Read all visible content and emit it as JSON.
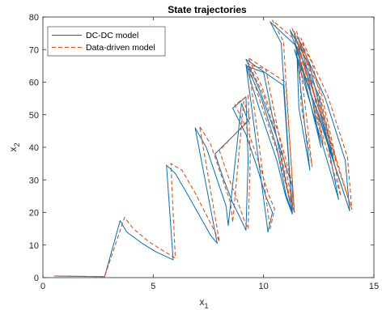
{
  "chart_data": {
    "type": "line",
    "title": "State trajectories",
    "xlabel": "x",
    "xlabel_sub": "1",
    "ylabel": "x",
    "ylabel_sub": "2",
    "xlim": [
      0,
      15
    ],
    "ylim": [
      0,
      80
    ],
    "xticks": [
      0,
      5,
      10,
      15
    ],
    "yticks": [
      0,
      10,
      20,
      30,
      40,
      50,
      60,
      70,
      80
    ],
    "grid": false,
    "legend_position": "top-left",
    "series": [
      {
        "name": "DC-DC model",
        "color": "#0072BD",
        "dash": "solid",
        "x": [
          0.5,
          2.8,
          3.5,
          3.8,
          4.5,
          5.1,
          5.9,
          5.6,
          6.0,
          6.6,
          7.6,
          7.9,
          6.9,
          7.4,
          7.9,
          8.3,
          8.4,
          9.0,
          9.3,
          7.8,
          8.2,
          8.6,
          9.0,
          9.2,
          9.3,
          9.2,
          8.6,
          9.2,
          9.7,
          10.1,
          10.4,
          10.2,
          9.2,
          9.9,
          10.6,
          11.0,
          11.3,
          10.9,
          9.2,
          9.8,
          10.6,
          11.3,
          11.3,
          10.0,
          9.2,
          9.8,
          10.6,
          11.0,
          11.3,
          10.8,
          10.3,
          11.5,
          11.6,
          12.1,
          11.4,
          12.0,
          12.6,
          11.5,
          12.5,
          13.2,
          11.6,
          12.8,
          13.7,
          13.9,
          11.2,
          12.1,
          12.8,
          13.4,
          11.4,
          12.5,
          13.3,
          13.9
        ],
        "y": [
          0.5,
          0.3,
          17.5,
          14.0,
          10.5,
          8.0,
          5.5,
          34.5,
          32.0,
          25.0,
          13.0,
          10.5,
          46.0,
          40.0,
          30.0,
          22.0,
          16.0,
          53.5,
          48.0,
          38.0,
          30.0,
          23.0,
          17.5,
          14.5,
          36.0,
          55.5,
          52.0,
          44.0,
          34.0,
          25.0,
          20.0,
          14.0,
          65.5,
          55.0,
          40.0,
          26.0,
          19.5,
          59.0,
          67.0,
          58.0,
          43.0,
          28.0,
          19.5,
          63.0,
          65.0,
          52.0,
          36.0,
          25.0,
          19.5,
          72.0,
          78.5,
          71.0,
          52.0,
          33.0,
          75.0,
          62.0,
          40.0,
          71.0,
          56.0,
          35.0,
          73.0,
          55.0,
          36.0,
          20.5,
          76.0,
          65.0,
          45.0,
          24.0,
          70.0,
          50.0,
          33.0,
          20.5
        ]
      },
      {
        "name": "Data-driven model",
        "color": "#D95319",
        "dash": "dashed",
        "x": [
          0.5,
          2.8,
          3.7,
          4.1,
          4.8,
          5.4,
          6.0,
          5.8,
          6.3,
          6.9,
          7.8,
          8.0,
          7.1,
          7.6,
          8.1,
          8.5,
          8.6,
          9.1,
          9.4,
          8.0,
          8.4,
          8.8,
          9.1,
          9.3,
          9.4,
          9.3,
          8.7,
          9.3,
          9.8,
          10.2,
          10.5,
          10.3,
          9.3,
          10.0,
          10.7,
          11.1,
          11.4,
          11.0,
          9.3,
          9.9,
          10.7,
          11.3,
          11.4,
          10.1,
          9.3,
          9.9,
          10.7,
          11.1,
          11.4,
          10.9,
          10.4,
          11.6,
          11.7,
          12.2,
          11.5,
          12.1,
          12.7,
          11.6,
          12.6,
          13.3,
          11.7,
          12.9,
          13.8,
          14.0,
          11.3,
          12.2,
          12.9,
          13.5,
          11.5,
          12.6,
          13.4,
          14.0
        ],
        "y": [
          0.5,
          0.3,
          18.5,
          15.0,
          11.0,
          8.5,
          6.0,
          35.0,
          33.0,
          26.0,
          14.0,
          11.0,
          46.5,
          41.0,
          31.0,
          23.0,
          17.0,
          54.0,
          49.0,
          39.0,
          31.0,
          24.0,
          18.0,
          15.0,
          37.0,
          56.0,
          53.0,
          45.0,
          35.0,
          26.0,
          21.0,
          15.0,
          66.0,
          56.0,
          41.0,
          27.0,
          20.0,
          60.0,
          67.5,
          59.0,
          44.0,
          29.0,
          20.0,
          64.0,
          65.5,
          53.0,
          37.0,
          26.0,
          20.0,
          72.5,
          79.0,
          72.0,
          53.0,
          34.0,
          75.5,
          63.0,
          41.0,
          71.5,
          57.0,
          36.0,
          73.5,
          56.0,
          37.0,
          21.0,
          76.5,
          66.0,
          46.0,
          25.0,
          70.5,
          51.0,
          34.0,
          21.0
        ]
      }
    ]
  }
}
